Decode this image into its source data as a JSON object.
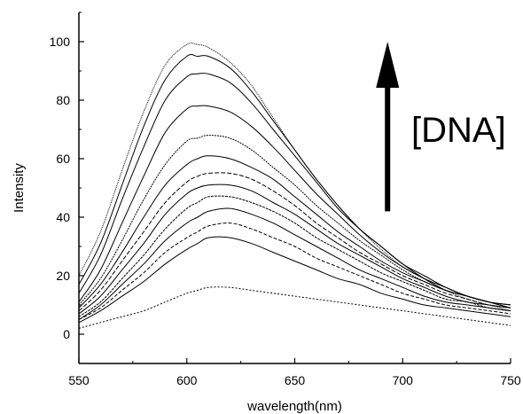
{
  "chart_data": {
    "type": "line",
    "title": "",
    "xlabel": "wavelength(nm)",
    "ylabel": "Intensity",
    "xlim": [
      550,
      750
    ],
    "ylim": [
      -10,
      110
    ],
    "x_ticks": [
      550,
      600,
      650,
      700,
      750
    ],
    "y_ticks": [
      0,
      20,
      40,
      60,
      80,
      100
    ],
    "grid": false,
    "legend": "none",
    "annotation": {
      "text": "[DNA]",
      "arrow_direction": "up",
      "arrow_x": 693,
      "arrow_y_from": 42,
      "arrow_y_to": 100
    },
    "x": [
      550,
      560,
      570,
      580,
      590,
      600,
      605,
      610,
      620,
      630,
      640,
      650,
      660,
      670,
      680,
      690,
      700,
      710,
      720,
      730,
      740,
      750
    ],
    "series": [
      {
        "peak_x": 620,
        "values": [
          2,
          4,
          6,
          8,
          11,
          14,
          15,
          16,
          16,
          15,
          14,
          13,
          12,
          11,
          10,
          9,
          8,
          7,
          6,
          5,
          4,
          3
        ]
      },
      {
        "peak_x": 620,
        "values": [
          4,
          8,
          13,
          18,
          24,
          29,
          31,
          33,
          33,
          31,
          28,
          25,
          22,
          19,
          17,
          14,
          12,
          10,
          9,
          8,
          7,
          6
        ]
      },
      {
        "peak_x": 620,
        "values": [
          5,
          9,
          15,
          21,
          28,
          33,
          35,
          37,
          38,
          36,
          33,
          30,
          26,
          23,
          20,
          17,
          14,
          12,
          10,
          9,
          8,
          7
        ]
      },
      {
        "peak_x": 620,
        "values": [
          5,
          10,
          17,
          24,
          32,
          38,
          40,
          42,
          43,
          41,
          38,
          34,
          30,
          26,
          22,
          19,
          16,
          13,
          11,
          10,
          9,
          8
        ]
      },
      {
        "peak_x": 620,
        "values": [
          6,
          11,
          19,
          27,
          36,
          43,
          45,
          47,
          47,
          45,
          42,
          38,
          33,
          29,
          25,
          21,
          18,
          15,
          12,
          11,
          9,
          8
        ]
      },
      {
        "peak_x": 620,
        "values": [
          7,
          13,
          22,
          31,
          41,
          48,
          50,
          51,
          51,
          49,
          45,
          41,
          36,
          31,
          27,
          23,
          19,
          16,
          13,
          11,
          10,
          9
        ]
      },
      {
        "peak_x": 615,
        "values": [
          8,
          15,
          25,
          35,
          45,
          52,
          54,
          55,
          55,
          53,
          49,
          44,
          38,
          33,
          28,
          24,
          20,
          17,
          14,
          12,
          10,
          9
        ]
      },
      {
        "peak_x": 615,
        "values": [
          9,
          17,
          28,
          40,
          51,
          58,
          60,
          61,
          60,
          57,
          53,
          47,
          41,
          35,
          30,
          25,
          21,
          18,
          15,
          13,
          11,
          10
        ]
      },
      {
        "peak_x": 612,
        "values": [
          10,
          19,
          32,
          46,
          58,
          66,
          67,
          68,
          67,
          63,
          57,
          51,
          44,
          38,
          32,
          27,
          22,
          18,
          15,
          13,
          11,
          10
        ]
      },
      {
        "peak_x": 610,
        "values": [
          11,
          22,
          38,
          54,
          69,
          77,
          78,
          78,
          76,
          71,
          64,
          56,
          48,
          41,
          34,
          28,
          23,
          19,
          16,
          13,
          11,
          10
        ]
      },
      {
        "peak_x": 610,
        "values": [
          14,
          27,
          46,
          64,
          80,
          88,
          89,
          89,
          86,
          79,
          70,
          61,
          52,
          43,
          36,
          30,
          24,
          20,
          16,
          13,
          11,
          9
        ]
      },
      {
        "peak_x": 608,
        "values": [
          17,
          31,
          51,
          71,
          87,
          95,
          95,
          95,
          91,
          83,
          73,
          63,
          53,
          44,
          36,
          30,
          24,
          19,
          15,
          13,
          11,
          9
        ]
      },
      {
        "peak_x": 605,
        "values": [
          20,
          35,
          56,
          76,
          92,
          99,
          99,
          98,
          93,
          85,
          74,
          63,
          53,
          44,
          36,
          29,
          23,
          19,
          15,
          12,
          10,
          8
        ]
      }
    ]
  }
}
